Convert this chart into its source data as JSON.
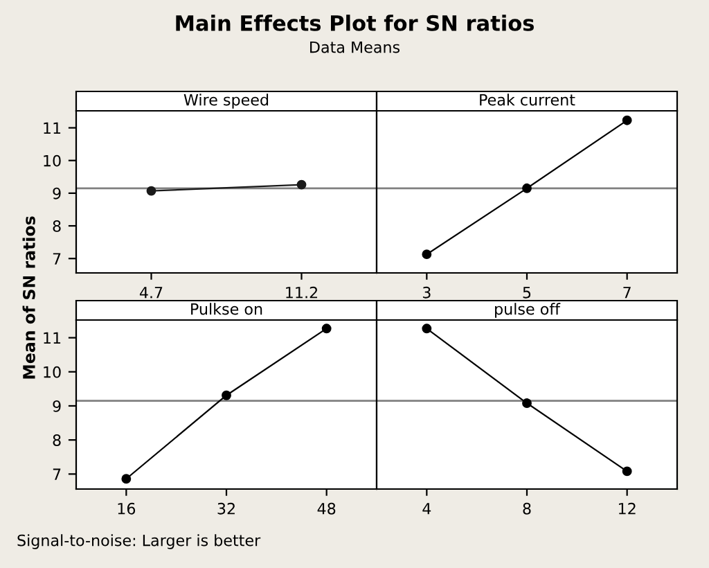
{
  "chart_data": [
    {
      "type": "line",
      "title": "Wire speed",
      "categories": [
        "4.7",
        "11.2"
      ],
      "series": [
        {
          "color": "#1a1a1a",
          "values": [
            9.07,
            9.26
          ]
        }
      ],
      "ylim": [
        6.56,
        11.52
      ],
      "yticks": [
        7,
        8,
        9,
        10,
        11
      ],
      "ref_lines": [
        {
          "axis": "y",
          "value": 9.15,
          "color": "#808080"
        }
      ],
      "marker": "circle",
      "grid": false
    },
    {
      "type": "line",
      "title": "Peak current",
      "categories": [
        "3",
        "5",
        "7"
      ],
      "series": [
        {
          "color": "#000000",
          "values": [
            7.13,
            9.15,
            11.23
          ]
        }
      ],
      "ylim": [
        6.56,
        11.52
      ],
      "yticks": [
        7,
        8,
        9,
        10,
        11
      ],
      "ref_lines": [
        {
          "axis": "y",
          "value": 9.15,
          "color": "#808080"
        }
      ],
      "marker": "circle",
      "grid": false,
      "tick_labels": "x"
    },
    {
      "type": "line",
      "title": "Pulkse on",
      "categories": [
        "16",
        "32",
        "48"
      ],
      "series": [
        {
          "color": "#000000",
          "values": [
            6.86,
            9.31,
            11.27
          ]
        }
      ],
      "ylim": [
        6.56,
        11.52
      ],
      "yticks": [
        7,
        8,
        9,
        10,
        11
      ],
      "ref_lines": [
        {
          "axis": "y",
          "value": 9.15,
          "color": "#808080"
        }
      ],
      "marker": "circle",
      "grid": false
    },
    {
      "type": "line",
      "title": "pulse off",
      "categories": [
        "4",
        "8",
        "12"
      ],
      "series": [
        {
          "color": "#000000",
          "values": [
            11.27,
            9.08,
            7.08
          ]
        }
      ],
      "ylim": [
        6.56,
        11.52
      ],
      "yticks": [
        7,
        8,
        9,
        10,
        11
      ],
      "ref_lines": [
        {
          "axis": "y",
          "value": 9.15,
          "color": "#808080"
        }
      ],
      "marker": "circle",
      "grid": false,
      "tick_labels": "x"
    },
    {
      "type": "other",
      "title": "Main Effects Plot for SN ratios",
      "subtitle": "Data Means",
      "ylabel": "Mean of SN ratios",
      "annotations": [
        "Signal-to-noise: Larger is better"
      ]
    }
  ]
}
